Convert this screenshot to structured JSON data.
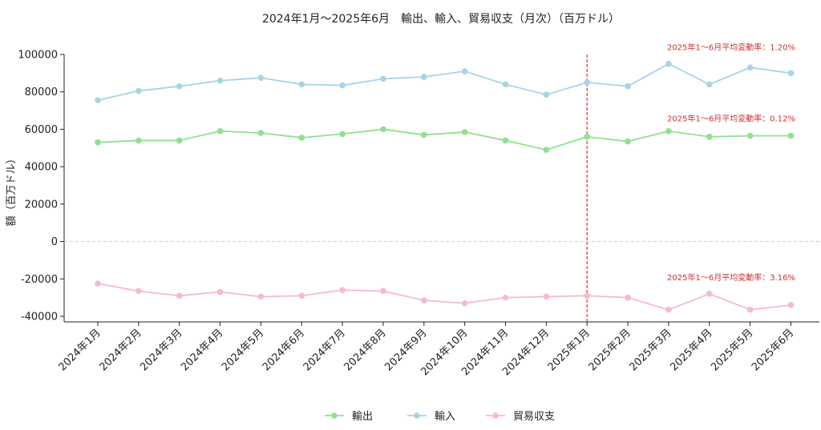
{
  "chart_data": {
    "type": "line",
    "title": "2024年1月～2025年6月　輸出、輸入、貿易収支（月次）（百万ドル）",
    "xlabel": "",
    "ylabel": "額（百万ドル）",
    "ylim": [
      -43000,
      100000
    ],
    "yticks": [
      100000,
      80000,
      60000,
      40000,
      20000,
      0,
      -20000,
      -40000
    ],
    "categories": [
      "2024年1月",
      "2024年2月",
      "2024年3月",
      "2024年4月",
      "2024年5月",
      "2024年6月",
      "2024年7月",
      "2024年8月",
      "2024年9月",
      "2024年10月",
      "2024年11月",
      "2024年12月",
      "2025年1月",
      "2025年2月",
      "2025年3月",
      "2025年4月",
      "2025年5月",
      "2025年6月"
    ],
    "series": [
      {
        "name": "輸出",
        "color": "#90e090",
        "values": [
          53000,
          54000,
          54000,
          59000,
          58000,
          55500,
          57500,
          60000,
          57000,
          58500,
          54000,
          49000,
          56000,
          53500,
          59000,
          56000,
          56500,
          56500
        ]
      },
      {
        "name": "輸入",
        "color": "#a8d4e6",
        "values": [
          75500,
          80500,
          83000,
          86000,
          87500,
          84000,
          83500,
          87000,
          88000,
          91000,
          84000,
          78500,
          85000,
          83000,
          95000,
          84000,
          93000,
          90000
        ]
      },
      {
        "name": "貿易収支",
        "color": "#f5bcc8",
        "values": [
          -22500,
          -26500,
          -29000,
          -27000,
          -29500,
          -29000,
          -26000,
          -26500,
          -31500,
          -33000,
          -30000,
          -29500,
          -29000,
          -30000,
          -36500,
          -28000,
          -36500,
          -34000
        ]
      }
    ],
    "annotations": [
      {
        "text": "2025年1～6月平均変動率：1.20%",
        "series": "輸入",
        "y": 104000
      },
      {
        "text": "2025年1～6月平均変動率：0.12%",
        "series": "輸出",
        "y": 66000
      },
      {
        "text": "2025年1～6月平均変動率：3.16%",
        "series": "貿易収支",
        "y": -19000
      }
    ],
    "vline": {
      "category": "2025年1月",
      "color": "#e03030",
      "style": "dashed"
    },
    "zero_line": true,
    "grid": false,
    "legend_position": "bottom-center",
    "annotation_color": "#d03030"
  }
}
